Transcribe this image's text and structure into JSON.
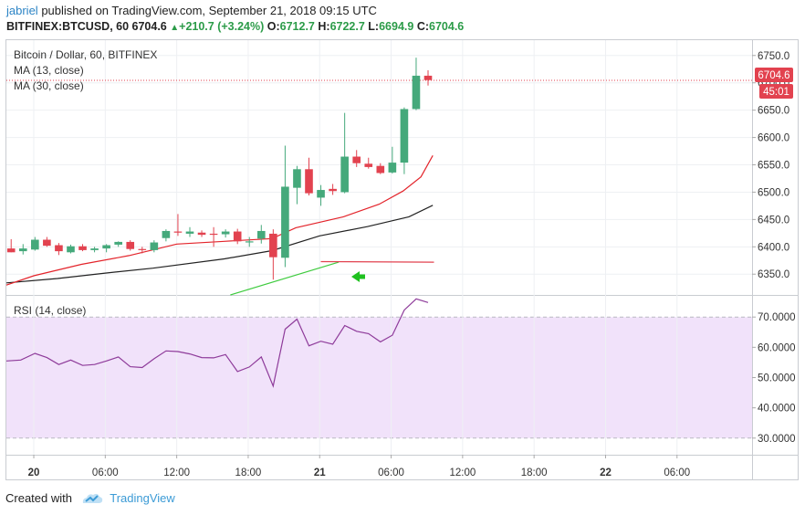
{
  "header": {
    "user": "jabriel",
    "published_text": "published on TradingView.com, September 21, 2018 09:15 UTC",
    "symbol": "BITFINEX:BTCUSD, 60",
    "last": "6704.6",
    "change": "+210.7 (+3.24%)",
    "o_label": "O:",
    "o": "6712.7",
    "h_label": "H:",
    "h": "6722.7",
    "l_label": "L:",
    "l": "6694.9",
    "c_label": "C:",
    "c": "6704.6"
  },
  "legend": {
    "title": "Bitcoin / Dollar, 60, BITFINEX",
    "ma13": "MA (13, close)",
    "ma30": "MA (30, close)",
    "rsi": "RSI (14, close)"
  },
  "price_tag": {
    "price": "6704.6",
    "countdown": "45:01"
  },
  "footer": {
    "created": "Created with",
    "brand": "TradingView"
  },
  "colors": {
    "up": "#45a97b",
    "down": "#e2424f",
    "ma13": "#e3242b",
    "ma30": "#222222",
    "rsi_line": "#8e3b9a",
    "rsi_band": "#f1e2fa",
    "trend": "#3ecb3e",
    "arrow": "#1fc11f"
  },
  "chart_data": [
    {
      "type": "candlestick",
      "title": "Bitcoin / Dollar, 60, BITFINEX",
      "ylim": [
        6312,
        6778
      ],
      "y_ticks": [
        "6750.0",
        "6700.0",
        "6650.0",
        "6600.0",
        "6550.0",
        "6500.0",
        "6450.0",
        "6400.0",
        "6350.0"
      ],
      "x_ticks": [
        "20",
        "06:00",
        "12:00",
        "18:00",
        "21",
        "06:00",
        "12:00",
        "18:00",
        "22",
        "06:00"
      ],
      "x_tick_hours": [
        0,
        6,
        12,
        18,
        24,
        30,
        36,
        42,
        48,
        54
      ],
      "x_range_hours": [
        -2.3,
        60.3
      ],
      "candles": [
        {
          "h": -1.9,
          "o": 6397,
          "hi": 6414,
          "lo": 6390,
          "c": 6390
        },
        {
          "h": -0.9,
          "o": 6392,
          "hi": 6405,
          "lo": 6386,
          "c": 6397
        },
        {
          "h": 0.1,
          "o": 6395,
          "hi": 6418,
          "lo": 6393,
          "c": 6413
        },
        {
          "h": 1.1,
          "o": 6413,
          "hi": 6418,
          "lo": 6400,
          "c": 6402
        },
        {
          "h": 2.1,
          "o": 6403,
          "hi": 6407,
          "lo": 6385,
          "c": 6392
        },
        {
          "h": 3.1,
          "o": 6390,
          "hi": 6404,
          "lo": 6388,
          "c": 6401
        },
        {
          "h": 4.1,
          "o": 6401,
          "hi": 6405,
          "lo": 6392,
          "c": 6394
        },
        {
          "h": 5.1,
          "o": 6394,
          "hi": 6400,
          "lo": 6390,
          "c": 6397
        },
        {
          "h": 6.1,
          "o": 6397,
          "hi": 6405,
          "lo": 6390,
          "c": 6403
        },
        {
          "h": 7.1,
          "o": 6404,
          "hi": 6410,
          "lo": 6400,
          "c": 6409
        },
        {
          "h": 8.1,
          "o": 6409,
          "hi": 6412,
          "lo": 6393,
          "c": 6396
        },
        {
          "h": 9.1,
          "o": 6396,
          "hi": 6400,
          "lo": 6388,
          "c": 6394
        },
        {
          "h": 10.1,
          "o": 6394,
          "hi": 6412,
          "lo": 6390,
          "c": 6408
        },
        {
          "h": 11.1,
          "o": 6416,
          "hi": 6432,
          "lo": 6410,
          "c": 6429
        },
        {
          "h": 12.1,
          "o": 6428,
          "hi": 6460,
          "lo": 6420,
          "c": 6426
        },
        {
          "h": 13.1,
          "o": 6424,
          "hi": 6436,
          "lo": 6418,
          "c": 6428
        },
        {
          "h": 14.1,
          "o": 6426,
          "hi": 6430,
          "lo": 6418,
          "c": 6422
        },
        {
          "h": 15.1,
          "o": 6424,
          "hi": 6436,
          "lo": 6400,
          "c": 6422
        },
        {
          "h": 16.1,
          "o": 6423,
          "hi": 6432,
          "lo": 6417,
          "c": 6428
        },
        {
          "h": 17.1,
          "o": 6428,
          "hi": 6433,
          "lo": 6405,
          "c": 6410
        },
        {
          "h": 18.1,
          "o": 6410,
          "hi": 6418,
          "lo": 6400,
          "c": 6410
        },
        {
          "h": 19.1,
          "o": 6415,
          "hi": 6440,
          "lo": 6406,
          "c": 6429
        },
        {
          "h": 20.1,
          "o": 6424,
          "hi": 6432,
          "lo": 6340,
          "c": 6381
        },
        {
          "h": 21.1,
          "o": 6380,
          "hi": 6585,
          "lo": 6363,
          "c": 6510
        },
        {
          "h": 22.1,
          "o": 6508,
          "hi": 6548,
          "lo": 6478,
          "c": 6542
        },
        {
          "h": 23.1,
          "o": 6542,
          "hi": 6563,
          "lo": 6494,
          "c": 6498
        },
        {
          "h": 24.1,
          "o": 6490,
          "hi": 6513,
          "lo": 6475,
          "c": 6504
        },
        {
          "h": 25.1,
          "o": 6506,
          "hi": 6515,
          "lo": 6495,
          "c": 6502
        },
        {
          "h": 26.1,
          "o": 6500,
          "hi": 6645,
          "lo": 6498,
          "c": 6565
        },
        {
          "h": 27.1,
          "o": 6565,
          "hi": 6577,
          "lo": 6546,
          "c": 6553
        },
        {
          "h": 28.1,
          "o": 6552,
          "hi": 6563,
          "lo": 6543,
          "c": 6546
        },
        {
          "h": 29.1,
          "o": 6548,
          "hi": 6553,
          "lo": 6533,
          "c": 6535
        },
        {
          "h": 30.1,
          "o": 6536,
          "hi": 6583,
          "lo": 6534,
          "c": 6554
        },
        {
          "h": 31.1,
          "o": 6554,
          "hi": 6655,
          "lo": 6533,
          "c": 6652
        },
        {
          "h": 32.1,
          "o": 6652,
          "hi": 6746,
          "lo": 6650,
          "c": 6713
        },
        {
          "h": 33.1,
          "o": 6713,
          "hi": 6723,
          "lo": 6695,
          "c": 6705
        }
      ],
      "ma13": [
        [
          -2.3,
          6330
        ],
        [
          0,
          6347
        ],
        [
          4,
          6368
        ],
        [
          8,
          6384
        ],
        [
          12,
          6405
        ],
        [
          16,
          6410
        ],
        [
          20,
          6415
        ],
        [
          22,
          6435
        ],
        [
          26,
          6455
        ],
        [
          29,
          6478
        ],
        [
          31,
          6502
        ],
        [
          32.5,
          6528
        ],
        [
          33.5,
          6567
        ]
      ],
      "ma30": [
        [
          -2.3,
          6334
        ],
        [
          2,
          6342
        ],
        [
          6,
          6352
        ],
        [
          10,
          6361
        ],
        [
          16,
          6378
        ],
        [
          20,
          6393
        ],
        [
          24,
          6420
        ],
        [
          28,
          6437
        ],
        [
          31.5,
          6455
        ],
        [
          33.5,
          6476
        ]
      ],
      "trendline": [
        [
          16.5,
          6312
        ],
        [
          25.6,
          6372
        ]
      ],
      "resistance_line": [
        [
          24.1,
          6373
        ],
        [
          33.6,
          6372
        ]
      ],
      "current_price": 6704.6
    },
    {
      "type": "line",
      "title": "RSI (14, close)",
      "ylim": [
        24.5,
        77
      ],
      "y_ticks": [
        "70.0000",
        "60.0000",
        "50.0000",
        "40.0000",
        "30.0000"
      ],
      "band": [
        30,
        70
      ],
      "x": [
        -2.3,
        -1.1,
        0.1,
        1.1,
        2.1,
        3.1,
        4.1,
        5.1,
        6.1,
        7.1,
        8.1,
        9.1,
        10.1,
        11.1,
        12.1,
        13.1,
        14.1,
        15.1,
        16.1,
        17.1,
        18.1,
        19.1,
        20.1,
        21.1,
        22.1,
        23.1,
        24.1,
        25.1,
        26.1,
        27.1,
        28.1,
        29.1,
        30.1,
        31.1,
        32.1,
        33.1
      ],
      "values": [
        55.5,
        55.8,
        58,
        56.6,
        54.3,
        55.8,
        54,
        54.3,
        55.5,
        56.8,
        53.6,
        53.3,
        56.2,
        58.8,
        58.6,
        57.8,
        56.6,
        56.5,
        57.6,
        52,
        53.5,
        56.8,
        47.2,
        66,
        69.3,
        60.5,
        62,
        61,
        67.2,
        65.3,
        64.5,
        61.8,
        64,
        72.3,
        76,
        74.8
      ]
    }
  ]
}
